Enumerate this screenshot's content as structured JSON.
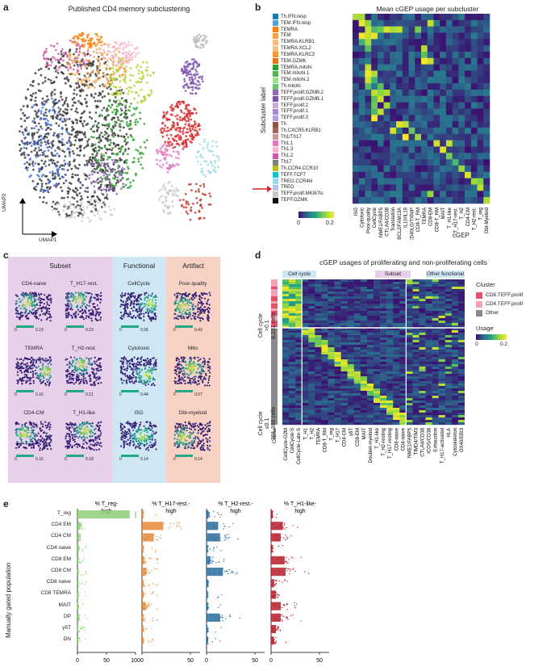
{
  "panels": {
    "a": "a",
    "b": "b",
    "c": "c",
    "d": "d",
    "e": "e"
  },
  "panel_a": {
    "title": "Published CD4 memory subclustering",
    "xaxis": "UMAP1",
    "yaxis": "UMAP2"
  },
  "panel_b": {
    "title": "Mean cGEP usage per subcluster",
    "ylabel": "Subcluster label",
    "xlabel": "cGEP",
    "colorbar_ticks": [
      "0",
      "0.2"
    ],
    "rows": [
      {
        "label": "Th.IFN.resp",
        "color": "#1f77b4"
      },
      {
        "label": "TEM.IFN.resp",
        "color": "#4fa3d8"
      },
      {
        "label": "TEMRA",
        "color": "#ff7f0e"
      },
      {
        "label": "TEM",
        "color": "#f2a14a"
      },
      {
        "label": "TEMRA.KLRB1",
        "color": "#ffbb78"
      },
      {
        "label": "TEMRA.XCL2",
        "color": "#e8c38a"
      },
      {
        "label": "TEMRA.KLRC3",
        "color": "#f29a3a"
      },
      {
        "label": "TEM.GZMK",
        "color": "#e6741a"
      },
      {
        "label": "TEMRA.mitohi",
        "color": "#2ca02c"
      },
      {
        "label": "TEM.mitohi.1",
        "color": "#4cb84c"
      },
      {
        "label": "TEM.mitohi.2",
        "color": "#98df8a"
      },
      {
        "label": "Th.mitohi",
        "color": "#6cc46c"
      },
      {
        "label": "TEFF.prolif.GZMB.2",
        "color": "#9467bd"
      },
      {
        "label": "TEFF.prolif.GZMB.1",
        "color": "#7b52ab"
      },
      {
        "label": "TEFF.prolif.2",
        "color": "#c5b0d5"
      },
      {
        "label": "TEFF.prolif.1",
        "color": "#a889c9"
      },
      {
        "label": "TEFF.prolif.3",
        "color": "#b39ddb"
      },
      {
        "label": "Th",
        "color": "#8c564b"
      },
      {
        "label": "Th.CXCR5.KLRB1",
        "color": "#a0685b"
      },
      {
        "label": "Th1/Th17",
        "color": "#c49c94"
      },
      {
        "label": "Th1.1",
        "color": "#e377c2"
      },
      {
        "label": "Th1.3",
        "color": "#f7b6d2"
      },
      {
        "label": "Th1.2",
        "color": "#d15aa8"
      },
      {
        "label": "Th17",
        "color": "#7f7f7f"
      },
      {
        "label": "Th.CCR4.CCR10",
        "color": "#bcbd22"
      },
      {
        "label": "TEFF.TCF7",
        "color": "#17becf"
      },
      {
        "label": "TREG.CCR4hi",
        "color": "#9edae5"
      },
      {
        "label": "TREG",
        "color": "#aec7e8"
      },
      {
        "label": "TEFF.prolif.MKI67lo",
        "color": "#c7c7c7"
      },
      {
        "label": "TEFF.GZMK",
        "color": "#111111"
      }
    ],
    "cols": [
      "ISG",
      "Cytotoxic",
      "Poor-quality",
      "CellCycle",
      "NME1/FABP5",
      "CTLA4/CD38",
      "Translation",
      "BCL2/FAM13A",
      "IL10/IL19",
      "CD40LG/TXNIP",
      "CD8-T_RM",
      "TEMRA",
      "CD8-EM",
      "CD8-T_RM",
      "MAIT",
      "T_H1-like",
      "T_H17-rest.",
      "T_H2",
      "CD4-CM",
      "T_H2-rest.",
      "T_reg",
      "Dbt-Myeloid"
    ]
  },
  "panel_c": {
    "groups": [
      {
        "name": "Subset",
        "color": "#e7d1ea"
      },
      {
        "name": "Functional",
        "color": "#cfe6f5"
      },
      {
        "name": "Artifact",
        "color": "#f7d2c4"
      }
    ],
    "umaps": [
      {
        "label": "CD4-naive",
        "max": "0.23"
      },
      {
        "label": "T_H17-rest.",
        "max": "0.23"
      },
      {
        "label": "CellCycle",
        "max": "0.26"
      },
      {
        "label": "Poor-quality",
        "max": "0.43"
      },
      {
        "label": "TEMRA",
        "max": "0.16"
      },
      {
        "label": "T_H2-rest.",
        "max": "0.21"
      },
      {
        "label": "Cytotoxic",
        "max": "0.44"
      },
      {
        "label": "Mito",
        "max": "0.07"
      },
      {
        "label": "CD4-CM",
        "max": "0.16"
      },
      {
        "label": "T_H1-like",
        "max": "0.18"
      },
      {
        "label": "ISG",
        "max": "0.14"
      },
      {
        "label": "Dbt-myeloid",
        "max": "0.14"
      }
    ],
    "colorbar_min": "0"
  },
  "panel_d": {
    "title": "cGEP usages of proliferating and non-proliferating cells",
    "row_group_top": "Cell cycle >0.1 8,231 cells",
    "row_group_top_l1": "Cell cycle",
    "row_group_top_l2": ">0.1",
    "row_group_top_l3": "8,231 cells",
    "row_group_bottom_l1": "Cell cycle",
    "row_group_bottom_l2": "≤0.1",
    "row_group_bottom_l3": "391,368 cells",
    "col_groups": [
      "Cell cycle",
      "Subset",
      "Other functional"
    ],
    "cluster_col_label": "Cluster",
    "legend_title": "Cluster",
    "legend": [
      {
        "label": "CD8.TEFF.prolif",
        "color": "#e5506a"
      },
      {
        "label": "CD4.TEFF.prolif",
        "color": "#f4a3b2"
      },
      {
        "label": "Other",
        "color": "#8a8a8a"
      }
    ],
    "usage_title": "Usage",
    "usage_ticks": [
      "0",
      "0.2"
    ],
    "cols": [
      "CellCycle-G2M",
      "CellCycle-S",
      "CellCycle-Late-S",
      "T_H1",
      "T_H2",
      "TEMRA",
      "CD8-T_RM",
      "T_reg",
      "T_H17",
      "CD4-CM",
      "γδT",
      "CD8-EM",
      "MAIT",
      "Doublet-myeloid",
      "T_H1-like",
      "T_H2-resting",
      "T_H17-resting",
      "CD8-naive",
      "CD4-naive",
      "NME1/FABP5",
      "TIMD4/TIM3",
      "CTLA4/CD38",
      "ICOS/CD38",
      "Exhaustion",
      "T_H17-activated",
      "HLA",
      "Cytoskeleton",
      "OX40/EBI3"
    ]
  },
  "panel_e": {
    "ylabel": "Manually gated population",
    "rows": [
      "T_reg",
      "CD4 EM",
      "CD4 CM",
      "CD4 naive",
      "CD8 EM",
      "CD8 CM",
      "CD8 naive",
      "CD8 TEMRA",
      "MAIT",
      "DP",
      "γδT",
      "DN"
    ],
    "facets": [
      {
        "title_l1": "% T_reg-",
        "title_l2": "high",
        "color": "#8fce7a",
        "ticks": [
          "0",
          "50",
          "100"
        ],
        "xlim": [
          0,
          100
        ]
      },
      {
        "title_l1": "% T_H17-rest.-",
        "title_l2": "high",
        "color": "#e58a3c",
        "ticks": [
          "0",
          "50"
        ],
        "xlim": [
          0,
          60
        ]
      },
      {
        "title_l1": "% T_H2-rest.-",
        "title_l2": "high",
        "color": "#2b6f9b",
        "ticks": [
          "0",
          "50"
        ],
        "xlim": [
          0,
          60
        ]
      },
      {
        "title_l1": "% T_H1-like-",
        "title_l2": "high",
        "color": "#b8202e",
        "ticks": [
          "0",
          "50"
        ],
        "xlim": [
          0,
          60
        ]
      }
    ]
  },
  "chart_data": [
    {
      "type": "heatmap",
      "title": "Mean cGEP usage per subcluster",
      "xlabel": "cGEP",
      "ylabel": "Subcluster label",
      "note": "values approximate, 0–0.2 scale"
    },
    {
      "type": "heatmap",
      "title": "cGEP usages of proliferating and non-proliferating cells"
    },
    {
      "type": "bar",
      "ylabel": "Manually gated population",
      "categories": [
        "T_reg",
        "CD4 EM",
        "CD4 CM",
        "CD4 naive",
        "CD8 EM",
        "CD8 CM",
        "CD8 naive",
        "CD8 TEMRA",
        "MAIT",
        "DP",
        "γδT",
        "DN"
      ],
      "series": [
        {
          "name": "% T_reg-high",
          "values": [
            90,
            4,
            3,
            2,
            1,
            1,
            1,
            1,
            1,
            2,
            1,
            1
          ]
        },
        {
          "name": "% T_H17-rest.-high",
          "values": [
            1,
            22,
            12,
            1,
            2,
            4,
            1,
            1,
            4,
            1,
            1,
            1
          ]
        },
        {
          "name": "% T_H2-rest.-high",
          "values": [
            2,
            12,
            14,
            1,
            4,
            17,
            1,
            1,
            1,
            14,
            1,
            1
          ]
        },
        {
          "name": "% T_H1-like-high",
          "values": [
            1,
            12,
            10,
            1,
            14,
            15,
            3,
            5,
            10,
            10,
            5,
            3
          ]
        }
      ]
    }
  ]
}
